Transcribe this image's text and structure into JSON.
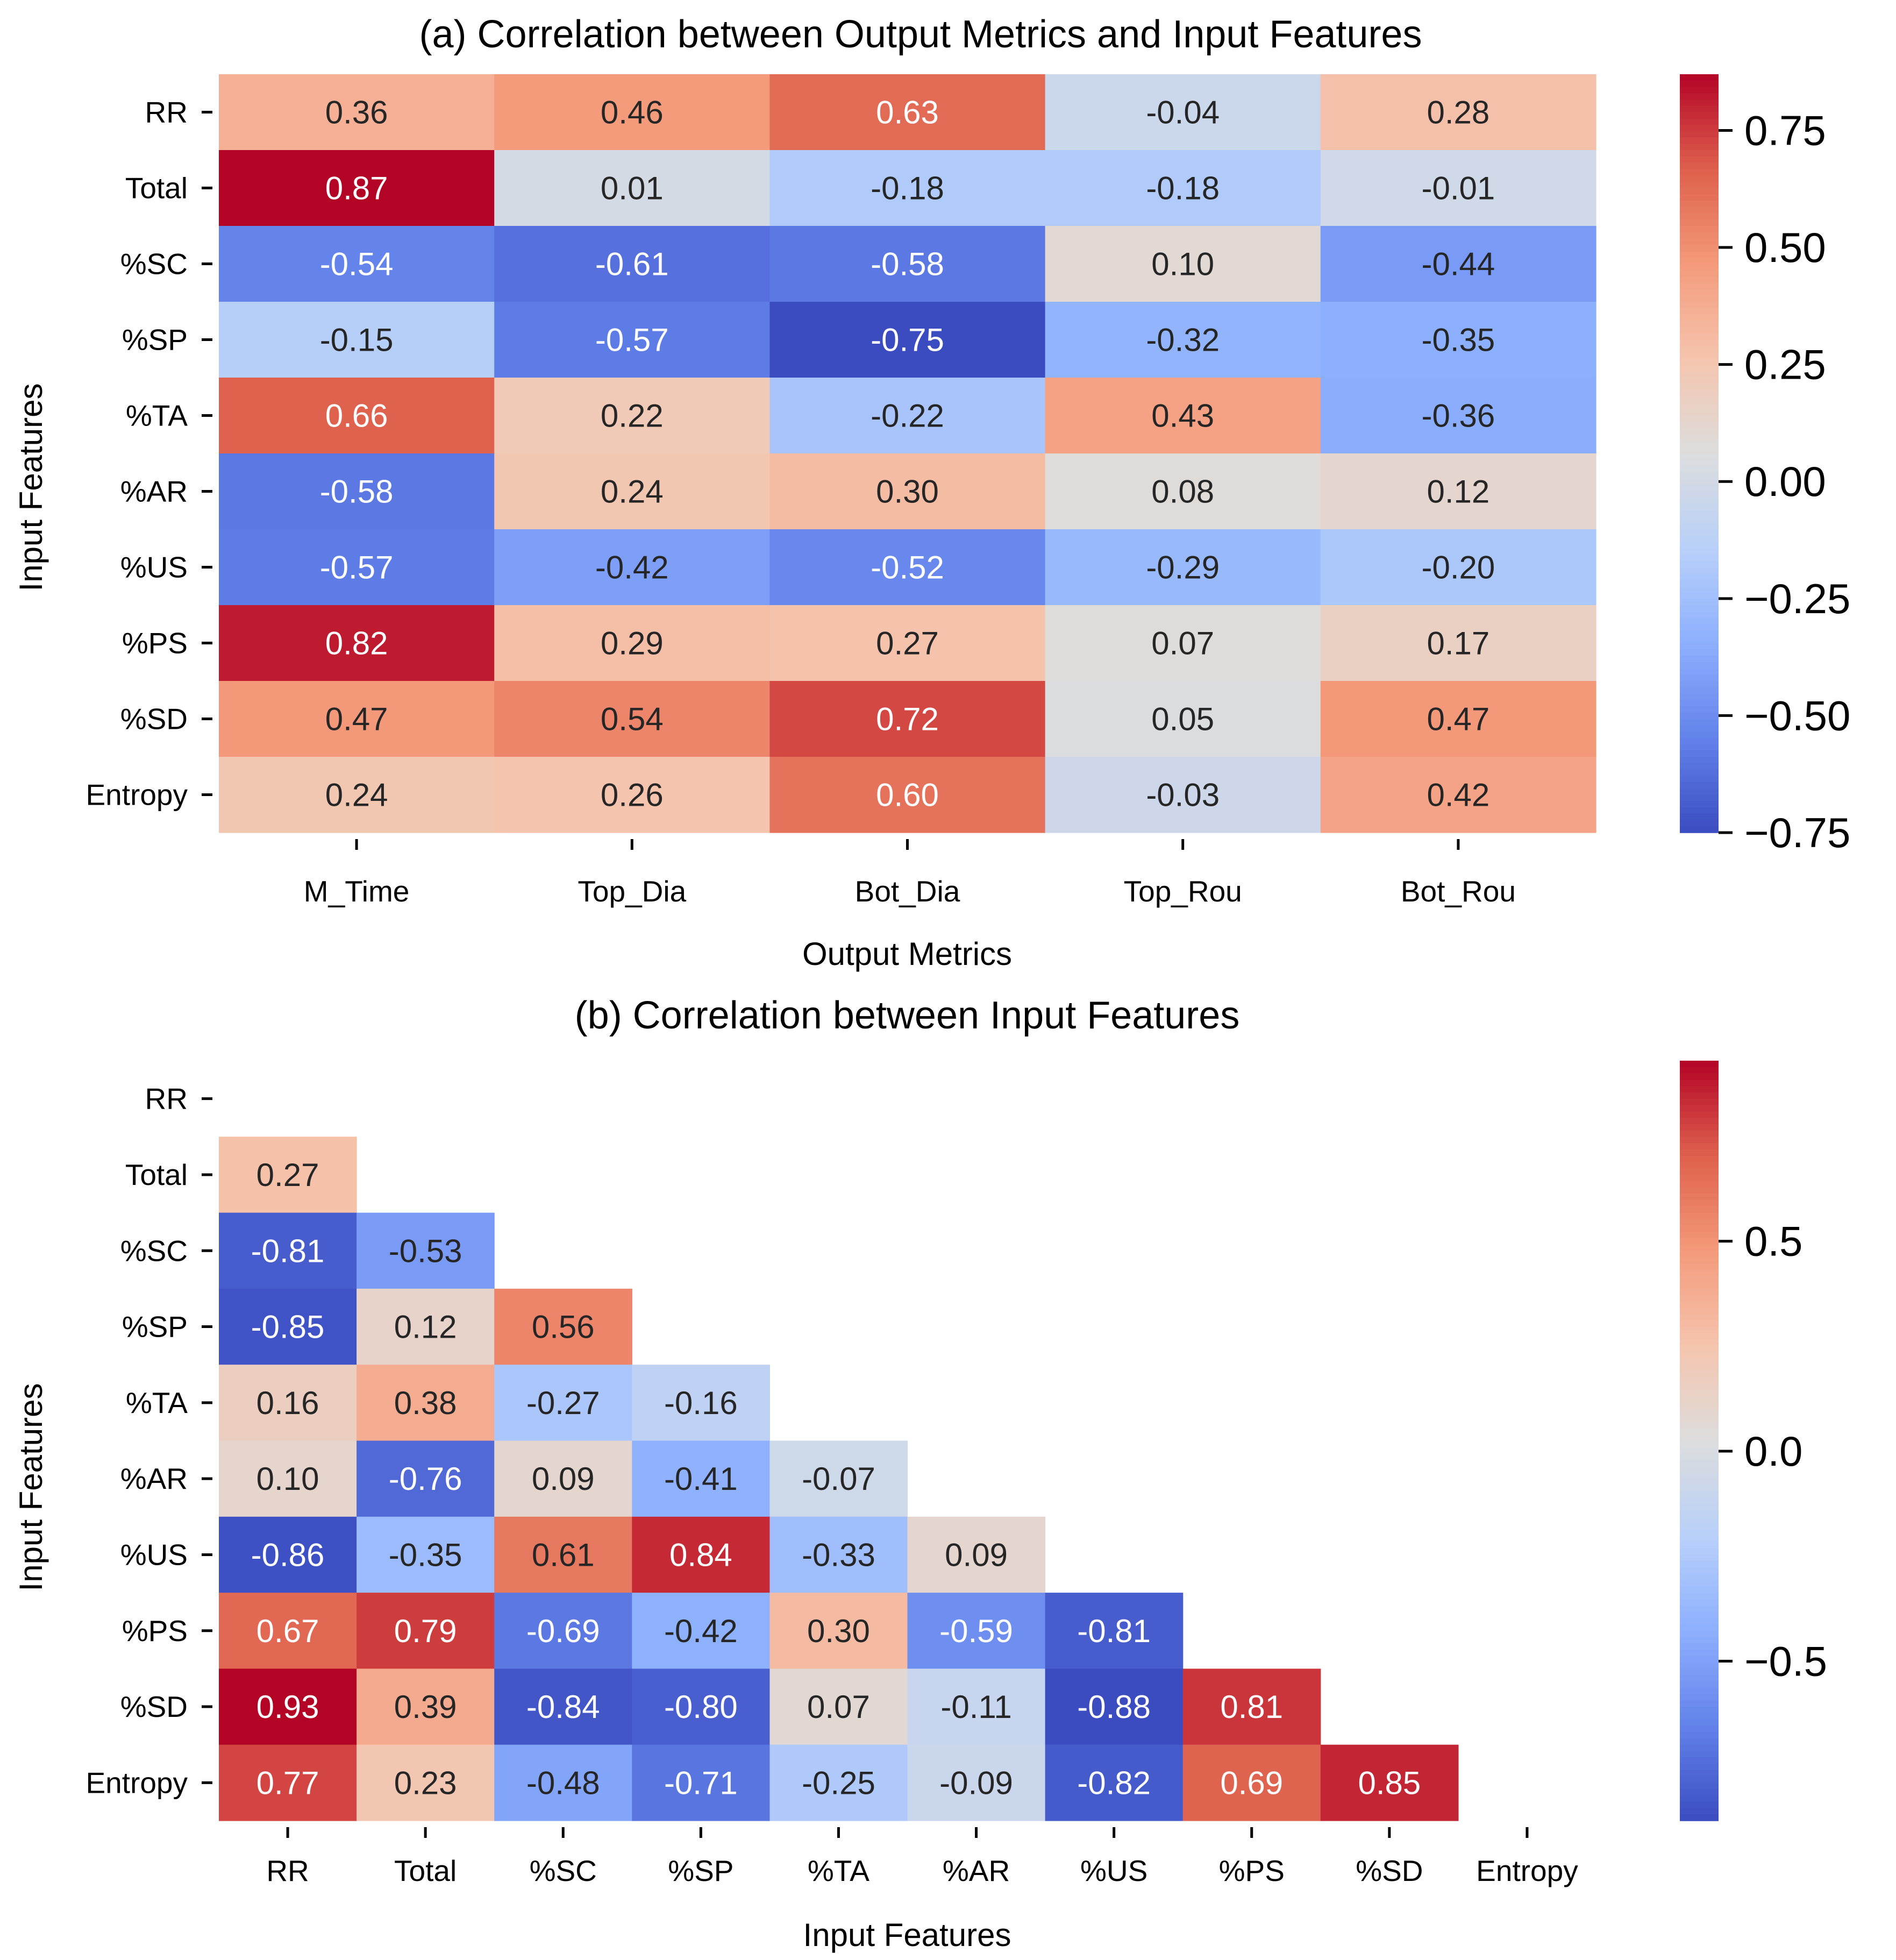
{
  "chart_data": [
    {
      "type": "heatmap",
      "title": "(a) Correlation between Output Metrics and Input Features",
      "xlabel": "Output Metrics",
      "ylabel": "Input Features",
      "x_categories": [
        "M_Time",
        "Top_Dia",
        "Bot_Dia",
        "Top_Rou",
        "Bot_Rou"
      ],
      "y_categories": [
        "RR",
        "Total",
        "%SC",
        "%SP",
        "%TA",
        "%AR",
        "%US",
        "%PS",
        "%SD",
        "Entropy"
      ],
      "values": [
        [
          0.36,
          0.46,
          0.63,
          -0.04,
          0.28
        ],
        [
          0.87,
          0.01,
          -0.18,
          -0.18,
          -0.01
        ],
        [
          -0.54,
          -0.61,
          -0.58,
          0.1,
          -0.44
        ],
        [
          -0.15,
          -0.57,
          -0.75,
          -0.32,
          -0.35
        ],
        [
          0.66,
          0.22,
          -0.22,
          0.43,
          -0.36
        ],
        [
          -0.58,
          0.24,
          0.3,
          0.08,
          0.12
        ],
        [
          -0.57,
          -0.42,
          -0.52,
          -0.29,
          -0.2
        ],
        [
          0.82,
          0.29,
          0.27,
          0.07,
          0.17
        ],
        [
          0.47,
          0.54,
          0.72,
          0.05,
          0.47
        ],
        [
          0.24,
          0.26,
          0.6,
          -0.03,
          0.42
        ]
      ],
      "colormap": "coolwarm",
      "colorbar": {
        "range": [
          -0.75,
          0.87
        ],
        "ticks": [
          0.75,
          0.5,
          0.25,
          0.0,
          -0.25,
          -0.5,
          -0.75
        ],
        "tick_labels": [
          "0.75",
          "0.50",
          "0.25",
          "0.00",
          "−0.25",
          "−0.50",
          "−0.75"
        ]
      }
    },
    {
      "type": "heatmap",
      "title": "(b) Correlation between Input Features",
      "xlabel": "Input Features",
      "ylabel": "Input Features",
      "x_categories": [
        "RR",
        "Total",
        "%SC",
        "%SP",
        "%TA",
        "%AR",
        "%US",
        "%PS",
        "%SD",
        "Entropy"
      ],
      "y_categories": [
        "RR",
        "Total",
        "%SC",
        "%SP",
        "%TA",
        "%AR",
        "%US",
        "%PS",
        "%SD",
        "Entropy"
      ],
      "mask": "upper-triangle-including-diagonal",
      "values": [
        [],
        [
          0.27
        ],
        [
          -0.81,
          -0.53
        ],
        [
          -0.85,
          0.12,
          0.56
        ],
        [
          0.16,
          0.38,
          -0.27,
          -0.16
        ],
        [
          0.1,
          -0.76,
          0.09,
          -0.41,
          -0.07
        ],
        [
          -0.86,
          -0.35,
          0.61,
          0.84,
          -0.33,
          0.09
        ],
        [
          0.67,
          0.79,
          -0.69,
          -0.42,
          0.3,
          -0.59,
          -0.81
        ],
        [
          0.93,
          0.39,
          -0.84,
          -0.8,
          0.07,
          -0.11,
          -0.88,
          0.81
        ],
        [
          0.77,
          0.23,
          -0.48,
          -0.71,
          -0.25,
          -0.09,
          -0.82,
          0.69,
          0.85
        ]
      ],
      "colormap": "coolwarm",
      "colorbar": {
        "range": [
          -0.88,
          0.93
        ],
        "ticks": [
          0.5,
          0.0,
          -0.5
        ],
        "tick_labels": [
          "0.5",
          "0.0",
          "−0.5"
        ]
      }
    }
  ]
}
